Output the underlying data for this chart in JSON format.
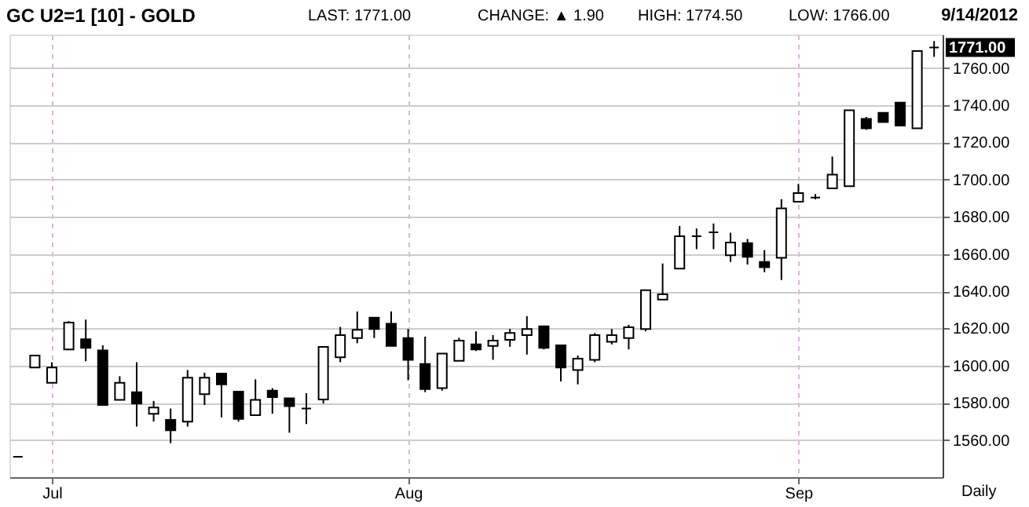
{
  "chart_data": {
    "type": "candlestick",
    "title": "GC U2=1 [10] - GOLD",
    "categories": [
      null,
      null,
      "Jul",
      null,
      null,
      null,
      null,
      null,
      null,
      null,
      null,
      null,
      null,
      null,
      null,
      null,
      null,
      null,
      null,
      null,
      null,
      null,
      null,
      "Aug",
      null,
      null,
      null,
      null,
      null,
      null,
      null,
      null,
      null,
      null,
      null,
      null,
      null,
      null,
      null,
      null,
      null,
      null,
      null,
      null,
      null,
      null,
      "Sep",
      null,
      null,
      null,
      null,
      null,
      null,
      null,
      null
    ],
    "ohlc": [
      [
        1551,
        1551,
        1551,
        1551
      ],
      [
        1599,
        1605.4,
        1599,
        1605.4
      ],
      [
        1590.7,
        1601.8,
        1590.7,
        1599
      ],
      [
        1608.7,
        1623.9,
        1608.7,
        1623.1
      ],
      [
        1614.2,
        1624.7,
        1602.3,
        1609.5
      ],
      [
        1608.1,
        1610.9,
        1578.8,
        1578.8
      ],
      [
        1581.6,
        1594.3,
        1581.6,
        1590.7
      ],
      [
        1585.7,
        1601.8,
        1567.2,
        1579.6
      ],
      [
        1574.1,
        1581,
        1569.9,
        1577.4
      ],
      [
        1570.8,
        1576.9,
        1558.3,
        1565.2
      ],
      [
        1569.9,
        1597.6,
        1567.2,
        1593.5
      ],
      [
        1584.6,
        1596.2,
        1578.8,
        1593.5
      ],
      [
        1595.7,
        1595.7,
        1572.2,
        1589.9
      ],
      [
        1586,
        1586,
        1569.9,
        1571.3
      ],
      [
        1573.3,
        1592.6,
        1573.3,
        1581.6
      ],
      [
        1586.5,
        1587.9,
        1574.1,
        1583
      ],
      [
        1582.4,
        1582.4,
        1563.9,
        1578.2
      ],
      [
        1576.9,
        1585.2,
        1568.6,
        1576.9
      ],
      [
        1581.8,
        1610.1,
        1579.6,
        1610.1
      ],
      [
        1604.5,
        1620.8,
        1601.8,
        1616.4
      ],
      [
        1614.8,
        1629.1,
        1612,
        1619.2
      ],
      [
        1625.8,
        1625.8,
        1614.8,
        1619.7
      ],
      [
        1622.5,
        1629.1,
        1610.6,
        1610.6
      ],
      [
        1614.8,
        1619.7,
        1592.1,
        1603.1
      ],
      [
        1600.9,
        1615.6,
        1585.7,
        1587.4
      ],
      [
        1587.9,
        1606.5,
        1586.5,
        1606.5
      ],
      [
        1602.6,
        1615,
        1602.6,
        1613.4
      ],
      [
        1611.4,
        1618.4,
        1607.8,
        1608.7
      ],
      [
        1610.6,
        1616.4,
        1603.1,
        1613.4
      ],
      [
        1613.9,
        1619.7,
        1610.1,
        1617.5
      ],
      [
        1616.4,
        1626.6,
        1605.9,
        1619.7
      ],
      [
        1621.1,
        1621.1,
        1608.7,
        1609.5
      ],
      [
        1610.9,
        1610.9,
        1591.5,
        1599
      ],
      [
        1597.6,
        1605.4,
        1589.9,
        1603.7
      ],
      [
        1603.1,
        1617.5,
        1601.8,
        1616.4
      ],
      [
        1612.8,
        1619.7,
        1611.4,
        1616.4
      ],
      [
        1614.8,
        1621.9,
        1608.7,
        1620.6
      ],
      [
        1619.7,
        1640.5,
        1618.4,
        1640.5
      ],
      [
        1635.5,
        1654.9,
        1635.5,
        1638.3
      ],
      [
        1652.1,
        1675.1,
        1652.1,
        1669.5
      ],
      [
        1669.5,
        1673.7,
        1662.6,
        1669.5
      ],
      [
        1671.7,
        1676.4,
        1662.6,
        1671.7
      ],
      [
        1659.3,
        1671.5,
        1655.7,
        1666.2
      ],
      [
        1665.9,
        1668.1,
        1654.3,
        1658.5
      ],
      [
        1655.7,
        1662.1,
        1650.2,
        1652.9
      ],
      [
        1657.9,
        1689.5,
        1646,
        1684.5
      ],
      [
        1688.1,
        1697.7,
        1688.1,
        1692.8
      ],
      [
        1690.3,
        1692.2,
        1689.4,
        1690.3
      ],
      [
        1695.3,
        1712.4,
        1695.3,
        1702.7
      ],
      [
        1696.4,
        1737.3,
        1696.4,
        1737.3
      ],
      [
        1732.6,
        1733.7,
        1726.8,
        1727.6
      ],
      [
        1735.9,
        1735.9,
        1730.9,
        1730.9
      ],
      [
        1741.4,
        1741.4,
        1729,
        1729
      ],
      [
        1727.6,
        1769.1,
        1727.6,
        1769.1
      ],
      [
        1771,
        1774.5,
        1766,
        1771
      ]
    ],
    "colors": [
      "#000000",
      "#ffffff",
      "#ffffff",
      "#ffffff",
      "#000000",
      "#000000",
      "#ffffff",
      "#000000",
      "#ffffff",
      "#000000",
      "#ffffff",
      "#ffffff",
      "#000000",
      "#000000",
      "#ffffff",
      "#000000",
      "#000000",
      "#000000",
      "#ffffff",
      "#ffffff",
      "#ffffff",
      "#000000",
      "#000000",
      "#000000",
      "#000000",
      "#ffffff",
      "#ffffff",
      "#000000",
      "#ffffff",
      "#ffffff",
      "#ffffff",
      "#000000",
      "#000000",
      "#ffffff",
      "#ffffff",
      "#ffffff",
      "#ffffff",
      "#ffffff",
      "#ffffff",
      "#ffffff",
      "#000000",
      "#000000",
      "#ffffff",
      "#000000",
      "#000000",
      "#ffffff",
      "#ffffff",
      "#000000",
      "#ffffff",
      "#ffffff",
      "#000000",
      "#000000",
      "#000000",
      "#ffffff",
      "#000000"
    ],
    "ylim": [
      1540,
      1778
    ],
    "yticks": [
      {
        "value": 1560,
        "label": "1560.00"
      },
      {
        "value": 1580,
        "label": "1580.00"
      },
      {
        "value": 1600,
        "label": "1600.00"
      },
      {
        "value": 1620,
        "label": "1620.00"
      },
      {
        "value": 1640,
        "label": "1640.00"
      },
      {
        "value": 1660,
        "label": "1660.00"
      },
      {
        "value": 1680,
        "label": "1680.00"
      },
      {
        "value": 1700,
        "label": "1700.00"
      },
      {
        "value": 1720,
        "label": "1720.00"
      },
      {
        "value": 1740,
        "label": "1740.00"
      },
      {
        "value": 1760,
        "label": "1760.00"
      }
    ],
    "grid": true,
    "annotations": [
      "LAST: 1771.00",
      "CHANGE: ▲ 1.90",
      "HIGH: 1774.50",
      "LOW: 1766.00",
      "9/14/2012",
      "Daily",
      "1771.00"
    ]
  }
}
